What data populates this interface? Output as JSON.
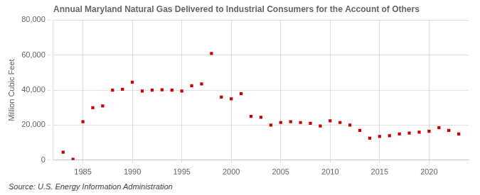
{
  "chart_data": {
    "type": "scatter",
    "title": "Annual Maryland Natural Gas Delivered to Industrial Consumers for the Account of Others",
    "ylabel": "Million Cubic Feet",
    "annotations": [
      "Source: U.S. Energy Information Administration"
    ],
    "x": [
      1983,
      1984,
      1985,
      1986,
      1987,
      1988,
      1989,
      1990,
      1991,
      1992,
      1993,
      1994,
      1995,
      1996,
      1997,
      1998,
      1999,
      2000,
      2001,
      2002,
      2003,
      2004,
      2005,
      2006,
      2007,
      2008,
      2009,
      2010,
      2011,
      2012,
      2013,
      2014,
      2015,
      2016,
      2017,
      2018,
      2019,
      2020,
      2021,
      2022,
      2023
    ],
    "values": [
      4500,
      500,
      22000,
      30000,
      31000,
      40000,
      40500,
      44500,
      39500,
      40000,
      40200,
      40000,
      39500,
      42500,
      43500,
      61000,
      36000,
      35000,
      38000,
      25000,
      24500,
      20000,
      21500,
      22000,
      21500,
      21000,
      19500,
      22500,
      21500,
      20000,
      17000,
      12500,
      13500,
      14000,
      15000,
      15500,
      16000,
      16500,
      18500,
      17000,
      15000
    ],
    "color": "#cc0000",
    "marker": "square",
    "xlim": [
      1982,
      2024
    ],
    "xticks": [
      1985,
      1990,
      1995,
      2000,
      2005,
      2010,
      2015,
      2020
    ],
    "ylim": [
      0,
      80000
    ],
    "yticks": [
      0,
      {
        "value": 20000,
        "label": "20,000"
      },
      {
        "value": 40000,
        "label": "40,000"
      },
      {
        "value": 60000,
        "label": "60,000"
      },
      {
        "value": 80000,
        "label": "80,000"
      }
    ],
    "grid": true
  }
}
